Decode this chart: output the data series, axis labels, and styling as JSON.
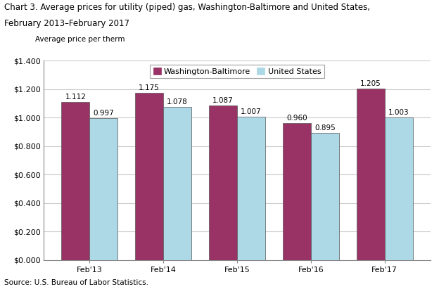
{
  "title_line1": "Chart 3. Average prices for utility (piped) gas, Washington-Baltimore and United States,",
  "title_line2": "February 2013–February 2017",
  "ylabel": "Average price per therm",
  "source": "Source: U.S. Bureau of Labor Statistics.",
  "categories": [
    "Feb'13",
    "Feb'14",
    "Feb'15",
    "Feb'16",
    "Feb'17"
  ],
  "washington_baltimore": [
    1.112,
    1.175,
    1.087,
    0.96,
    1.205
  ],
  "united_states": [
    0.997,
    1.078,
    1.007,
    0.895,
    1.003
  ],
  "wb_color": "#993366",
  "us_color": "#add8e6",
  "bar_edge_color": "#555555",
  "ylim": [
    0,
    1.4
  ],
  "yticks": [
    0.0,
    0.2,
    0.4,
    0.6,
    0.8,
    1.0,
    1.2,
    1.4
  ],
  "ytick_labels": [
    "$0.000",
    "$0.200",
    "$0.400",
    "$0.600",
    "$0.800",
    "$1.000",
    "$1.200",
    "$1.400"
  ],
  "legend_labels": [
    "Washington-Baltimore",
    "United States"
  ],
  "title_fontsize": 8.5,
  "sublabel_fontsize": 7.5,
  "label_fontsize": 7.5,
  "tick_fontsize": 8,
  "bar_width": 0.38,
  "grid_color": "#cccccc",
  "source_fontsize": 7.5
}
